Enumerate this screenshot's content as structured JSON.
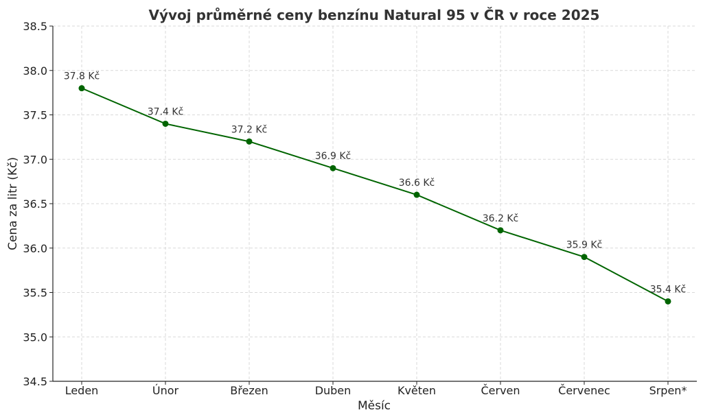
{
  "chart_data": {
    "type": "line",
    "title": "Vývoj průměrné ceny benzínu Natural 95 v ČR v roce 2025",
    "xlabel": "Měsíc",
    "ylabel": "Cena za litr (Kč)",
    "categories": [
      "Leden",
      "Únor",
      "Březen",
      "Duben",
      "Květen",
      "Červen",
      "Červenec",
      "Srpen*"
    ],
    "values": [
      37.8,
      37.4,
      37.2,
      36.9,
      36.6,
      36.2,
      35.9,
      35.4
    ],
    "data_labels": [
      "37.8 Kč",
      "37.4 Kč",
      "37.2 Kč",
      "36.9 Kč",
      "36.6 Kč",
      "36.2 Kč",
      "35.9 Kč",
      "35.4 Kč"
    ],
    "ylim": [
      34.5,
      38.5
    ],
    "yticks": [
      "34.5",
      "35.0",
      "35.5",
      "36.0",
      "36.5",
      "37.0",
      "37.5",
      "38.0",
      "38.5"
    ],
    "grid": true,
    "line_color": "#006400"
  }
}
